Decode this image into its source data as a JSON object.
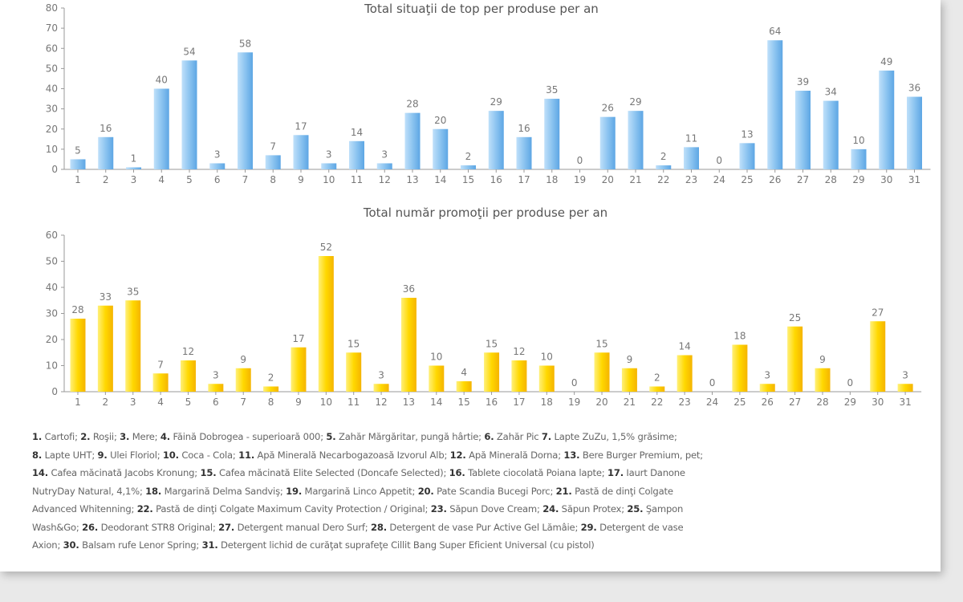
{
  "chart_data": [
    {
      "type": "bar",
      "title": "Total situaţii de top per produse per an",
      "categories": [
        "1",
        "2",
        "3",
        "4",
        "5",
        "6",
        "7",
        "8",
        "9",
        "10",
        "11",
        "12",
        "13",
        "14",
        "15",
        "16",
        "17",
        "18",
        "19",
        "20",
        "21",
        "22",
        "23",
        "24",
        "25",
        "26",
        "27",
        "28",
        "29",
        "30",
        "31"
      ],
      "values": [
        5,
        16,
        1,
        40,
        54,
        3,
        58,
        7,
        17,
        3,
        14,
        3,
        28,
        20,
        2,
        29,
        16,
        35,
        0,
        26,
        29,
        2,
        11,
        0,
        13,
        64,
        39,
        34,
        10,
        49,
        36
      ],
      "ylim": [
        0,
        80
      ],
      "yticks": [
        0,
        10,
        20,
        30,
        40,
        50,
        60,
        70,
        80
      ],
      "color": "#6fb3ea",
      "xlabel": "",
      "ylabel": ""
    },
    {
      "type": "bar",
      "title": "Total număr promoţii per produse per an",
      "categories": [
        "1",
        "2",
        "3",
        "4",
        "5",
        "6",
        "7",
        "8",
        "9",
        "10",
        "11",
        "12",
        "13",
        "14",
        "15",
        "16",
        "17",
        "18",
        "19",
        "20",
        "21",
        "22",
        "23",
        "24",
        "25",
        "26",
        "27",
        "28",
        "29",
        "30",
        "31"
      ],
      "values": [
        28,
        33,
        35,
        7,
        12,
        3,
        9,
        2,
        17,
        52,
        15,
        3,
        36,
        10,
        4,
        15,
        12,
        10,
        0,
        15,
        9,
        2,
        14,
        0,
        18,
        3,
        25,
        9,
        0,
        27,
        3
      ],
      "ylim": [
        0,
        60
      ],
      "yticks": [
        0,
        10,
        20,
        30,
        40,
        50,
        60
      ],
      "color": "#ffd000",
      "xlabel": "",
      "ylabel": ""
    }
  ],
  "legend": {
    "lines": [
      [
        "1.",
        " Cartofi; ",
        "2.",
        " Roşii; ",
        "3.",
        " Mere; ",
        "4.",
        " Făină Dobrogea - superioară 000; ",
        "5.",
        " Zahăr Mărgăritar, pungă hârtie; ",
        "6.",
        " Zahăr Pic ",
        "7.",
        " Lapte ZuZu, 1,5% grăsime;"
      ],
      [
        "8.",
        " Lapte UHT; ",
        "9.",
        " Ulei Floriol; ",
        "10.",
        " Coca - Cola; ",
        "11.",
        " Apă Minerală Necarbogazoasă Izvorul Alb; ",
        "12.",
        " Apă Minerală Dorna; ",
        "13.",
        " Bere Burger Premium, pet;"
      ],
      [
        "14.",
        " Cafea măcinată Jacobs Kronung; ",
        "15.",
        " Cafea măcinată Elite Selected (Doncafe Selected); ",
        "16.",
        " Tablete ciocolată Poiana lapte; ",
        "17.",
        " Iaurt Danone"
      ],
      [
        "NutryDay Natural, 4,1%; ",
        "18.",
        " Margarină Delma Sandviş; ",
        "19.",
        " Margarină Linco Appetit; ",
        "20.",
        " Pate Scandia Bucegi Porc; ",
        "21.",
        " Pastă de dinţi Colgate"
      ],
      [
        "Advanced Whitenning; ",
        "22.",
        " Pastă de dinţi Colgate Maximum Cavity Protection / Original; ",
        "23.",
        " Săpun Dove Cream; ",
        "24.",
        " Săpun Protex; ",
        "25.",
        " Şampon"
      ],
      [
        "Wash&Go; ",
        "26.",
        " Deodorant STR8 Original; ",
        "27.",
        " Detergent manual Dero Surf; ",
        "28.",
        " Detergent de vase Pur Active Gel Lămâie; ",
        "29.",
        " Detergent de vase"
      ],
      [
        "Axion; ",
        "30.",
        " Balsam rufe Lenor Spring; ",
        "31.",
        " Detergent lichid de curăţat suprafeţe Cillit Bang Super Eficient Universal (cu pistol)"
      ]
    ]
  }
}
